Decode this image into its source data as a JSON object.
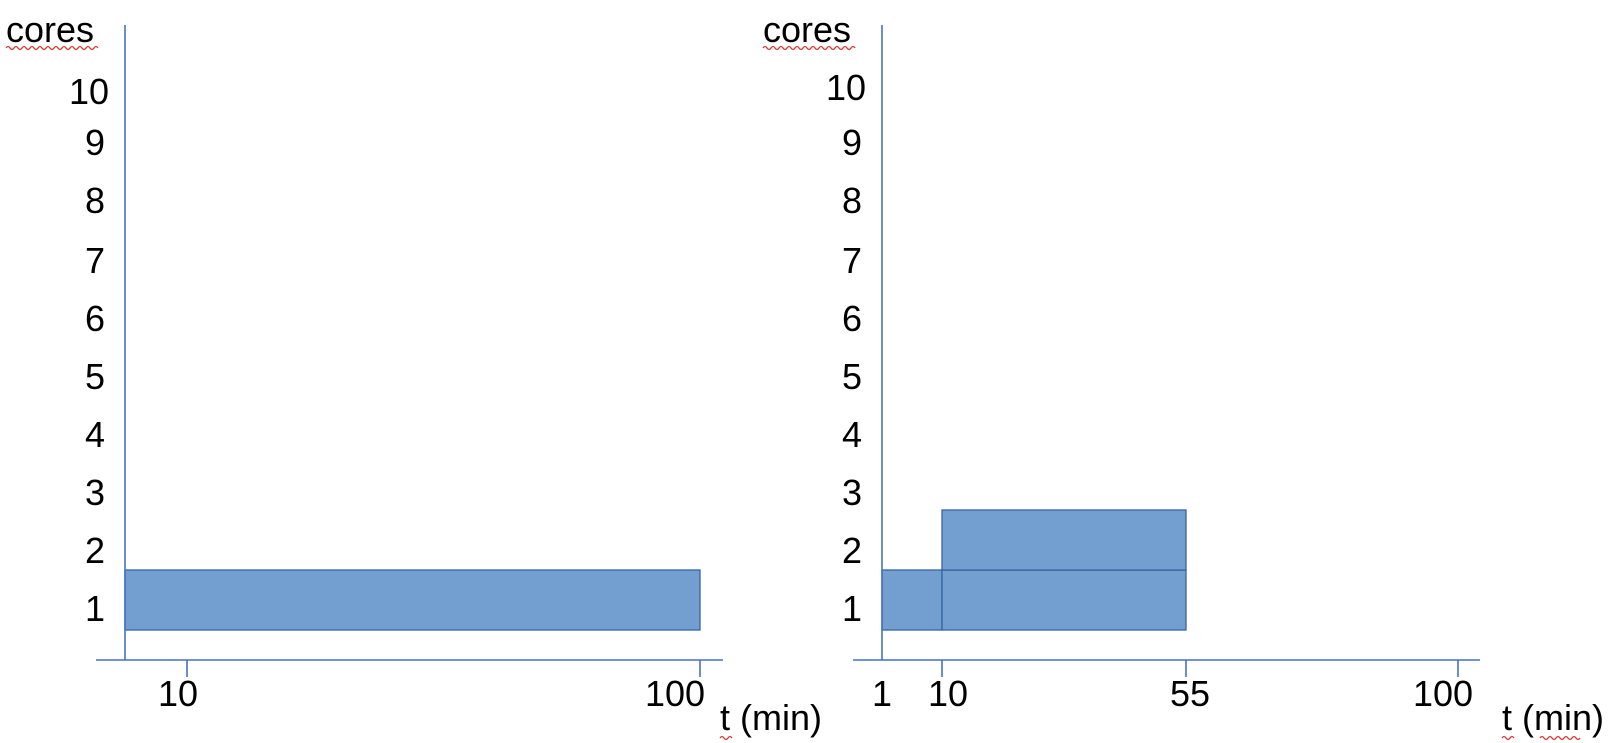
{
  "colors": {
    "axis": "#4472C4",
    "block_fill": "#729FCF",
    "block_stroke": "#3465A4",
    "spellcheck": "#E03030"
  },
  "charts": [
    {
      "id": "left",
      "ylabel": "cores",
      "xlabel": "t (min)",
      "yticks": [
        "1",
        "2",
        "3",
        "4",
        "5",
        "6",
        "7",
        "8",
        "9",
        "10"
      ],
      "xticks": [
        "10",
        "100"
      ],
      "blocks": [
        {
          "t_start": "0",
          "t_end": "100",
          "cores": "1",
          "level": 1
        }
      ]
    },
    {
      "id": "right",
      "ylabel": "cores",
      "xlabel": "t (min)",
      "yticks": [
        "1",
        "2",
        "3",
        "4",
        "5",
        "6",
        "7",
        "8",
        "9",
        "10"
      ],
      "xticks": [
        "1",
        "10",
        "55",
        "100"
      ],
      "blocks": [
        {
          "t_start": "1",
          "t_end": "10",
          "cores": "1",
          "level": 1
        },
        {
          "t_start": "10",
          "t_end": "55",
          "cores": "1",
          "level": 1
        },
        {
          "t_start": "10",
          "t_end": "55",
          "cores": "2",
          "level": 2
        }
      ]
    }
  ]
}
